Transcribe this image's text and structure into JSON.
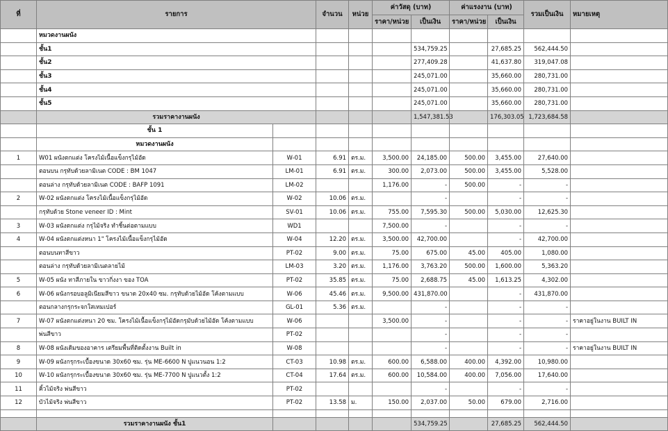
{
  "header": {
    "no": "ที่",
    "item": "รายการ",
    "qty": "จำนวน",
    "unit": "หน่วย",
    "material": "ค่าวัสดุ (บาท)",
    "labor": "ค่าแรงงาน (บาท)",
    "total": "รวมเป็นเงิน",
    "remark": "หมายเหตุ",
    "unit_price": "ราคา/หน่วย",
    "amount": "เป็นเงิน"
  },
  "summary": {
    "section_title": "หมวดงานผนัง",
    "floors": [
      {
        "name": "ชั้น1",
        "mat": "534,759.25",
        "lab": "27,685.25",
        "total": "562,444.50"
      },
      {
        "name": "ชั้น2",
        "mat": "277,409.28",
        "lab": "41,637.80",
        "total": "319,047.08"
      },
      {
        "name": "ชั้น3",
        "mat": "245,071.00",
        "lab": "35,660.00",
        "total": "280,731.00"
      },
      {
        "name": "ชั้น4",
        "mat": "245,071.00",
        "lab": "35,660.00",
        "total": "280,731.00"
      },
      {
        "name": "ชั้น5",
        "mat": "245,071.00",
        "lab": "35,660.00",
        "total": "280,731.00"
      }
    ],
    "total_label": "รวมราคางานผนัง",
    "total_mat": "1,547,381.53",
    "total_lab": "176,303.05",
    "total_all": "1,723,684.58"
  },
  "floor1": {
    "title": "ชั้น 1",
    "section": "หมวดงานผนัง",
    "items": [
      {
        "no": "1",
        "desc": "W01 ผนังตกแต่ง โครงไม้เนื้อแข็งกรุไม้อัด",
        "code": "W-01",
        "qty": "6.91",
        "unit": "ตร.ม.",
        "mu": "3,500.00",
        "ma": "24,185.00",
        "lu": "500.00",
        "la": "3,455.00",
        "tot": "27,640.00",
        "remark": ""
      },
      {
        "no": "",
        "desc": "ตอนบน กรุทับด้วยลามิเนต CODE : BM 1047",
        "code": "LM-01",
        "qty": "6.91",
        "unit": "ตร.ม.",
        "mu": "300.00",
        "ma": "2,073.00",
        "lu": "500.00",
        "la": "3,455.00",
        "tot": "5,528.00",
        "remark": ""
      },
      {
        "no": "",
        "desc": "ตอนล่าง กรุทับด้วยลามิเนต CODE : BAFP 1091",
        "code": "LM-02",
        "qty": "",
        "unit": "",
        "mu": "1,176.00",
        "ma": "-",
        "lu": "500.00",
        "la": "-",
        "tot": "-",
        "remark": ""
      },
      {
        "no": "2",
        "desc": "W-02 ผนังตกแต่ง โครงไม้เนื้อแข็งกรุไม้อัด",
        "code": "W-02",
        "qty": "10.06",
        "unit": "ตร.ม.",
        "mu": "",
        "ma": "-",
        "lu": "",
        "la": "-",
        "tot": "-",
        "remark": ""
      },
      {
        "no": "",
        "desc": "กรุทับด้วย Stone veneer ID : Mint",
        "code": "SV-01",
        "qty": "10.06",
        "unit": "ตร.ม.",
        "mu": "755.00",
        "ma": "7,595.30",
        "lu": "500.00",
        "la": "5,030.00",
        "tot": "12,625.30",
        "remark": ""
      },
      {
        "no": "3",
        "desc": "W-03 ผนังตกแต่ง กรุไม้จริง ทำชิ้นต่อตามแบบ",
        "code": "WD1",
        "qty": "",
        "unit": "",
        "mu": "7,500.00",
        "ma": "-",
        "lu": "",
        "la": "-",
        "tot": "-",
        "remark": ""
      },
      {
        "no": "4",
        "desc": "W-04 ผนังตกแต่งหนา 1\" โครงไม้เนื้อแข็งกรุไม้อัด",
        "code": "W-04",
        "qty": "12.20",
        "unit": "ตร.ม.",
        "mu": "3,500.00",
        "ma": "42,700.00",
        "lu": "",
        "la": "-",
        "tot": "42,700.00",
        "remark": ""
      },
      {
        "no": "",
        "desc": "ตอนบนทาสีขาว",
        "code": "PT-02",
        "qty": "9.00",
        "unit": "ตร.ม.",
        "mu": "75.00",
        "ma": "675.00",
        "lu": "45.00",
        "la": "405.00",
        "tot": "1,080.00",
        "remark": ""
      },
      {
        "no": "",
        "desc": "ตอนล่าง กรุทับด้วยลามิเนตลายไม้",
        "code": "LM-03",
        "qty": "3.20",
        "unit": "ตร.ม.",
        "mu": "1,176.00",
        "ma": "3,763.20",
        "lu": "500.00",
        "la": "1,600.00",
        "tot": "5,363.20",
        "remark": ""
      },
      {
        "no": "5",
        "desc": "W-05 ผนัง ทาสีภายใน ขาวกิ่งงา ของ TOA",
        "code": "PT-02",
        "qty": "35.85",
        "unit": "ตร.ม.",
        "mu": "75.00",
        "ma": "2,688.75",
        "lu": "45.00",
        "la": "1,613.25",
        "tot": "4,302.00",
        "remark": ""
      },
      {
        "no": "6",
        "desc": "W-06 ผนังกรอบอลูมิเนียมสีขาว ขนาด 20x40 ซม. กรุทับด้วยไม้อัด โค้งตามแบบ",
        "code": "W-06",
        "qty": "45.46",
        "unit": "ตร.ม.",
        "mu": "9,500.00",
        "ma": "431,870.00",
        "lu": "",
        "la": "-",
        "tot": "431,870.00",
        "remark": ""
      },
      {
        "no": "",
        "desc": "ตอนกลางกรุกระจกใสเทมเปอร์",
        "code": "GL-01",
        "qty": "5.36",
        "unit": "ตร.ม.",
        "mu": "",
        "ma": "-",
        "lu": "",
        "la": "-",
        "tot": "-",
        "remark": ""
      },
      {
        "no": "7",
        "desc": "W-07 ผนังตกแต่งหนา 20 ซม. โครงไม้เนื้อแข็งกรุไม้อัดกรุมับด้วยไม้อัด โค้งตามแบบ",
        "code": "W-06",
        "qty": "",
        "unit": "",
        "mu": "3,500.00",
        "ma": "-",
        "lu": "",
        "la": "-",
        "tot": "-",
        "remark": "ราคาอยู่ในงาน BUILT IN"
      },
      {
        "no": "",
        "desc": "พ่นสีขาว",
        "code": "PT-02",
        "qty": "",
        "unit": "",
        "mu": "",
        "ma": "-",
        "lu": "",
        "la": "-",
        "tot": "-",
        "remark": ""
      },
      {
        "no": "8",
        "desc": "W-08 ผนังเดิมของอาคาร เตรียมพื้นที่ติดตั้งงาน Built in",
        "code": "W-08",
        "qty": "",
        "unit": "",
        "mu": "",
        "ma": "-",
        "lu": "",
        "la": "-",
        "tot": "-",
        "remark": "ราคาอยู่ในงาน BUILT IN"
      },
      {
        "no": "9",
        "desc": "W-09 ผนังกรุกระเบื้องขนาด 30x60 ซม. รุ่น ME-6600 N ปูแนวนอน 1:2",
        "code": "CT-03",
        "qty": "10.98",
        "unit": "ตร.ม.",
        "mu": "600.00",
        "ma": "6,588.00",
        "lu": "400.00",
        "la": "4,392.00",
        "tot": "10,980.00",
        "remark": ""
      },
      {
        "no": "10",
        "desc": "W-10 ผนังกรุกระเบื้องขนาด 30x60 ซม. รุ่น ME-7700 N ปูแนวตั้ง 1:2",
        "code": "CT-04",
        "qty": "17.64",
        "unit": "ตร.ม.",
        "mu": "600.00",
        "ma": "10,584.00",
        "lu": "400.00",
        "la": "7,056.00",
        "tot": "17,640.00",
        "remark": ""
      },
      {
        "no": "11",
        "desc": "คิ้วไม้จริง พ่นสีขาว",
        "code": "PT-02",
        "qty": "",
        "unit": "",
        "mu": "",
        "ma": "-",
        "lu": "",
        "la": "-",
        "tot": "-",
        "remark": ""
      },
      {
        "no": "12",
        "desc": "บัวไม้จริง พ่นสีขาว",
        "code": "PT-02",
        "qty": "13.58",
        "unit": "ม.",
        "mu": "150.00",
        "ma": "2,037.00",
        "lu": "50.00",
        "la": "679.00",
        "tot": "2,716.00",
        "remark": ""
      }
    ],
    "total_label": "รวมราคางานผนัง ชั้น1",
    "total_mat": "534,759.25",
    "total_lab": "27,685.25",
    "total_all": "562,444.50"
  }
}
